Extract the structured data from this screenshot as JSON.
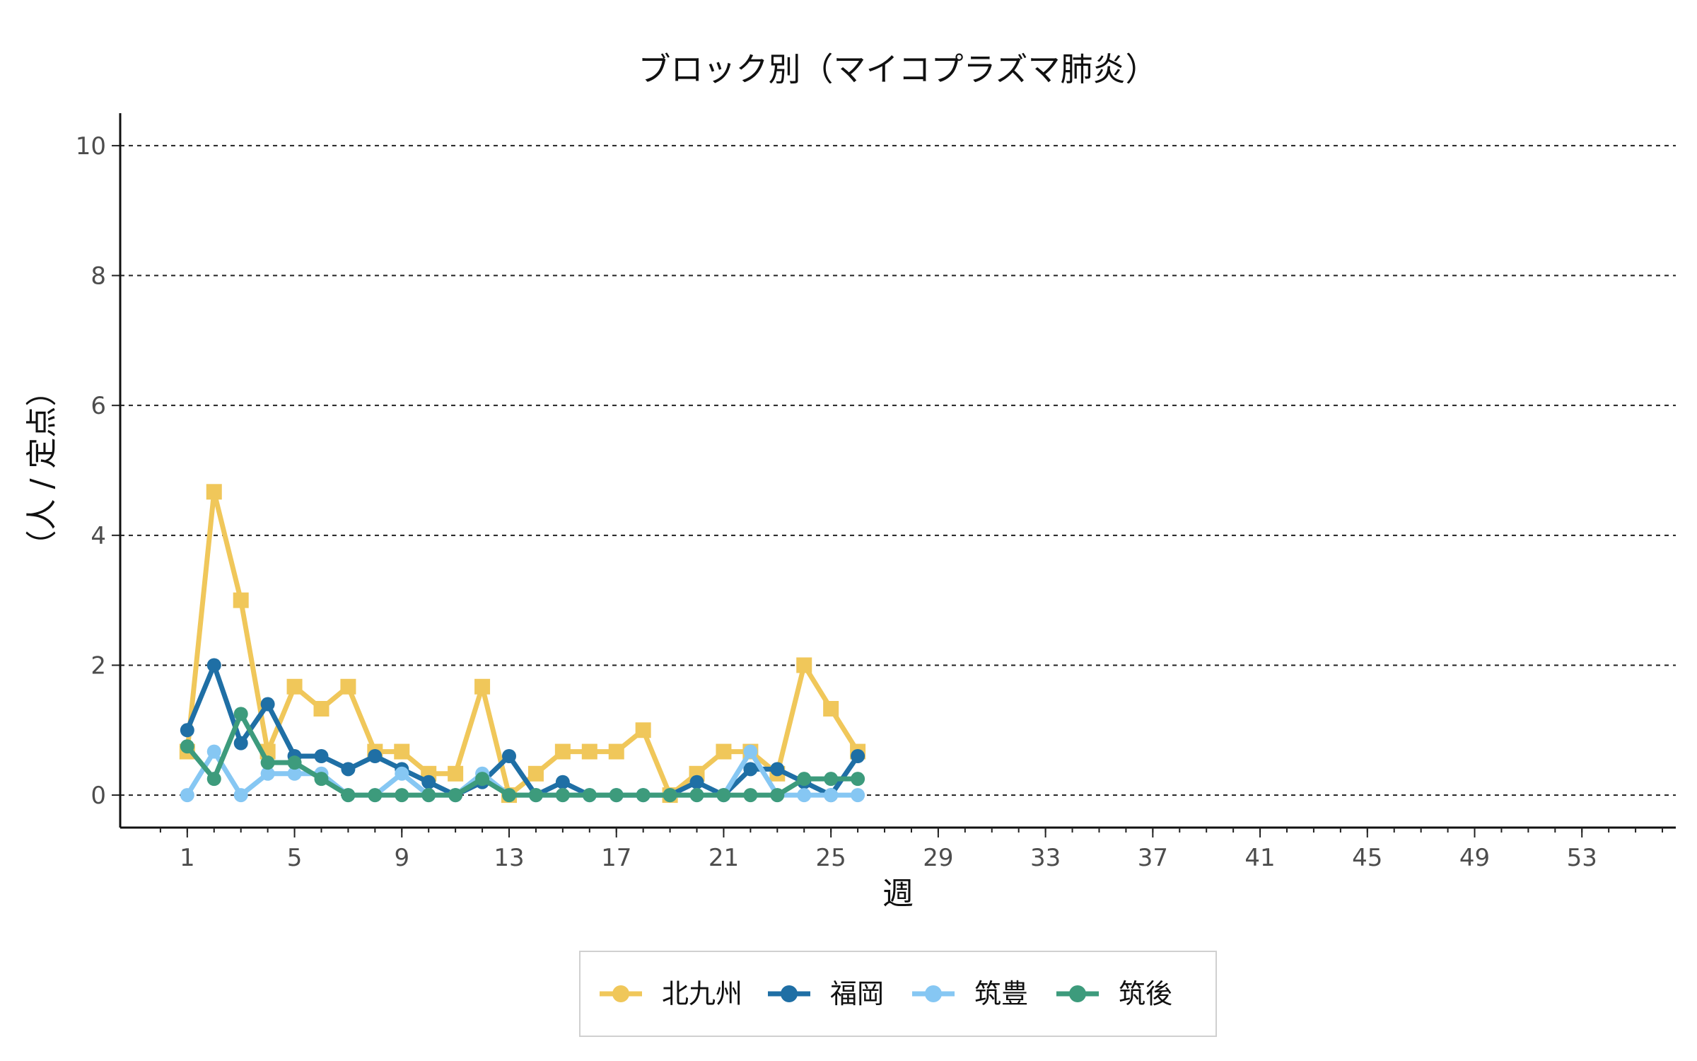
{
  "chart_data": {
    "type": "line",
    "title": "ブロック別（マイコプラズマ肺炎）",
    "xlabel": "週",
    "ylabel": "（人 / 定点）",
    "xlim": [
      -1.5,
      56.5
    ],
    "ylim": [
      -0.5,
      10.5
    ],
    "x_ticks": [
      1,
      5,
      9,
      13,
      17,
      21,
      25,
      29,
      33,
      37,
      41,
      45,
      49,
      53
    ],
    "y_ticks": [
      0,
      2,
      4,
      6,
      8,
      10
    ],
    "grid": "horizontal-dashed",
    "legend_position": "bottom",
    "x": [
      1,
      2,
      3,
      4,
      5,
      6,
      7,
      8,
      9,
      10,
      11,
      12,
      13,
      14,
      15,
      16,
      17,
      18,
      19,
      20,
      21,
      22,
      23,
      24,
      25,
      26
    ],
    "series": [
      {
        "name": "北九州",
        "color": "#f0c75a",
        "marker": "square",
        "values": [
          0.67,
          4.67,
          3.0,
          0.67,
          1.67,
          1.33,
          1.67,
          0.67,
          0.67,
          0.33,
          0.33,
          1.67,
          0.0,
          0.33,
          0.67,
          0.67,
          0.67,
          1.0,
          0.0,
          0.33,
          0.67,
          0.67,
          0.33,
          2.0,
          1.33,
          0.67
        ]
      },
      {
        "name": "福岡",
        "color": "#1f6fa5",
        "marker": "circle",
        "values": [
          1.0,
          2.0,
          0.8,
          1.4,
          0.6,
          0.6,
          0.4,
          0.6,
          0.4,
          0.2,
          0.0,
          0.2,
          0.6,
          0.0,
          0.2,
          0.0,
          0.0,
          0.0,
          0.0,
          0.2,
          0.0,
          0.4,
          0.4,
          0.2,
          0.0,
          0.6
        ]
      },
      {
        "name": "筑豊",
        "color": "#86c7f3",
        "marker": "circle",
        "values": [
          0.0,
          0.67,
          0.0,
          0.33,
          0.33,
          0.33,
          0.0,
          0.0,
          0.33,
          0.0,
          0.0,
          0.33,
          0.0,
          0.0,
          0.0,
          0.0,
          0.0,
          0.0,
          0.0,
          0.0,
          0.0,
          0.67,
          0.0,
          0.0,
          0.0,
          0.0
        ]
      },
      {
        "name": "筑後",
        "color": "#3d9b7c",
        "marker": "circle",
        "values": [
          0.75,
          0.25,
          1.25,
          0.5,
          0.5,
          0.25,
          0.0,
          0.0,
          0.0,
          0.0,
          0.0,
          0.25,
          0.0,
          0.0,
          0.0,
          0.0,
          0.0,
          0.0,
          0.0,
          0.0,
          0.0,
          0.0,
          0.0,
          0.25,
          0.25,
          0.25
        ]
      }
    ]
  }
}
